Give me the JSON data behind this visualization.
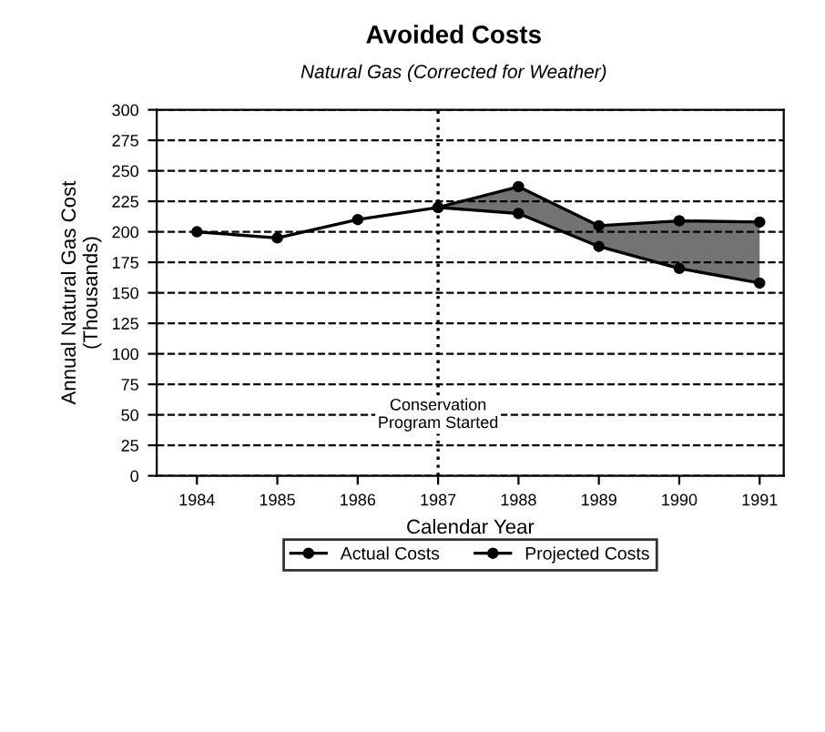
{
  "chart_data": {
    "type": "line",
    "title": "Avoided Costs",
    "subtitle": "Natural Gas (Corrected for Weather)",
    "xlabel": "Calendar Year",
    "ylabel": "Annual Natural Gas Cost\n(Thousands)",
    "x": [
      1984,
      1985,
      1986,
      1987,
      1988,
      1989,
      1990,
      1991
    ],
    "series": [
      {
        "name": "Actual Costs",
        "color": "#000000",
        "values": [
          200,
          195,
          210,
          220,
          215,
          188,
          170,
          158
        ]
      },
      {
        "name": "Projected Costs",
        "color": "#000000",
        "x": [
          1987,
          1988,
          1989,
          1990,
          1991
        ],
        "values": [
          220,
          237,
          205,
          209,
          208
        ],
        "lower": [
          220,
          215,
          188,
          170,
          158
        ],
        "upper": [
          220,
          237,
          205,
          209,
          208
        ]
      }
    ],
    "xlim": [
      1983.5,
      1991.3
    ],
    "xticks": [
      1984,
      1985,
      1986,
      1987,
      1988,
      1989,
      1990,
      1991
    ],
    "ylim": [
      0,
      300
    ],
    "yticks": [
      0,
      25,
      50,
      75,
      100,
      125,
      150,
      175,
      200,
      225,
      250,
      275,
      300
    ],
    "ref_lines": [
      {
        "axis": "x",
        "value": 1987,
        "label": "Conservation\nProgram Started",
        "line_style": "dotted",
        "color": "#000000"
      }
    ],
    "grid": "y",
    "legend": "bottom",
    "marker": "circle",
    "line_style": "solid"
  }
}
